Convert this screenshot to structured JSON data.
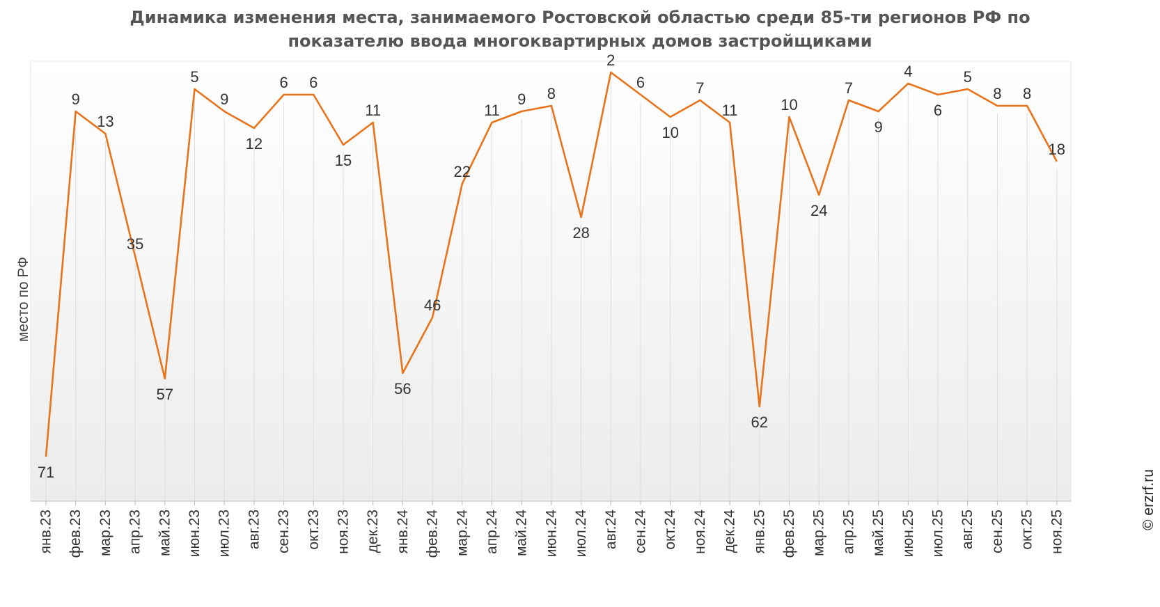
{
  "chart_data": {
    "type": "line",
    "title_line1": "Динамика изменения места, занимаемого Ростовской областью среди 85-ти регионов РФ по",
    "title_line2": "показателю ввода многоквартирных домов застройщиками",
    "ylabel": "место по РФ",
    "xlabel": "",
    "y_inverted": true,
    "ylim": [
      1,
      79
    ],
    "grid": "vertical",
    "categories": [
      "янв.23",
      "фев.23",
      "мар.23",
      "апр.23",
      "май.23",
      "июн.23",
      "июл.23",
      "авг.23",
      "сен.23",
      "окт.23",
      "ноя.23",
      "дек.23",
      "янв.24",
      "фев.24",
      "мар.24",
      "апр.24",
      "май.24",
      "июн.24",
      "июл.24",
      "авг.24",
      "сен.24",
      "окт.24",
      "ноя.24",
      "дек.24",
      "янв.25",
      "фев.25",
      "мар.25",
      "апр.25",
      "май.25",
      "июн.25",
      "июл.25",
      "авг.25",
      "сен.25",
      "окт.25",
      "ноя.25"
    ],
    "values": [
      71,
      9,
      13,
      35,
      57,
      5,
      9,
      12,
      6,
      6,
      15,
      11,
      56,
      46,
      22,
      11,
      9,
      8,
      28,
      2,
      6,
      10,
      7,
      11,
      62,
      10,
      24,
      7,
      9,
      4,
      6,
      5,
      8,
      8,
      18
    ],
    "line_color": "#e8731a"
  },
  "watermark": "© erzrf.ru"
}
